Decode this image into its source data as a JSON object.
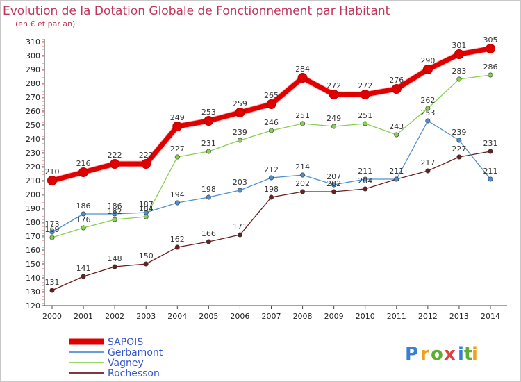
{
  "chart_data": {
    "type": "line",
    "title": "Evolution de la Dotation Globale de Fonctionnement par Habitant",
    "subtitle": "(en € et par an)",
    "categories": [
      "2000",
      "2001",
      "2002",
      "2003",
      "2004",
      "2005",
      "2006",
      "2007",
      "2008",
      "2009",
      "2010",
      "2011",
      "2012",
      "2013",
      "2014"
    ],
    "ylim": [
      120,
      310
    ],
    "yticks": [
      120,
      130,
      140,
      150,
      160,
      170,
      180,
      190,
      200,
      210,
      220,
      230,
      240,
      250,
      260,
      270,
      280,
      290,
      300,
      310
    ],
    "grid": false,
    "legend_position": "bottom-left",
    "series": [
      {
        "name": "SAPOIS",
        "color": "#e00000",
        "values": [
          210,
          216,
          222,
          222,
          249,
          253,
          259,
          265,
          284,
          272,
          272,
          276,
          290,
          301,
          305
        ]
      },
      {
        "name": "Gerbamont",
        "color": "#4f8fd0",
        "values": [
          173,
          186,
          186,
          187,
          194,
          198,
          203,
          212,
          214,
          207,
          211,
          211,
          253,
          239,
          211
        ]
      },
      {
        "name": "Vagney",
        "color": "#88d050",
        "values": [
          169,
          176,
          182,
          184,
          227,
          231,
          239,
          246,
          251,
          249,
          251,
          243,
          262,
          283,
          286
        ]
      },
      {
        "name": "Rochesson",
        "color": "#6b1f1f",
        "values": [
          131,
          141,
          148,
          150,
          162,
          166,
          171,
          198,
          202,
          202,
          204,
          211,
          217,
          227,
          231
        ]
      }
    ]
  },
  "brand": {
    "letters": [
      "P",
      "r",
      "o",
      "x",
      "i",
      "t",
      "i"
    ]
  }
}
